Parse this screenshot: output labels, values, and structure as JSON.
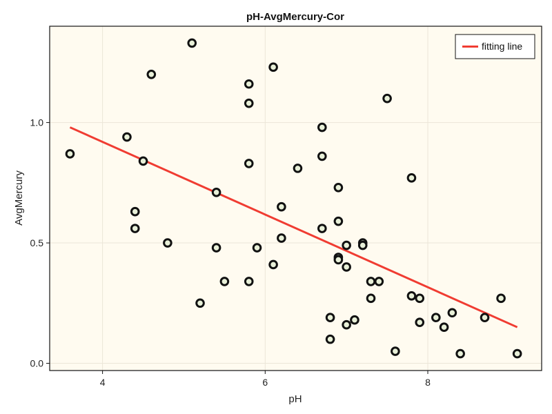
{
  "chart_data": {
    "type": "scatter",
    "title": "pH-AvgMercury-Cor",
    "xlabel": "pH",
    "ylabel": "AvgMercury",
    "xlim": [
      3.35,
      9.4
    ],
    "ylim": [
      -0.03,
      1.4
    ],
    "xticks": [
      4,
      6,
      8
    ],
    "xtick_labels": [
      "4",
      "6",
      "8"
    ],
    "yticks": [
      0.0,
      0.5,
      1.0
    ],
    "ytick_labels": [
      "0.0",
      "0.5",
      "1.0"
    ],
    "grid": true,
    "legend": {
      "placement": "top-right",
      "entries": [
        "fitting line"
      ]
    },
    "colors": {
      "background": "#fffbf0",
      "point_fill": "#e8f0d8",
      "point_edge": "#111111",
      "line": "#f03c32",
      "grid": "#ebe6d8"
    },
    "series": [
      {
        "kind": "points",
        "points": [
          [
            3.6,
            0.87
          ],
          [
            4.3,
            0.94
          ],
          [
            4.4,
            0.63
          ],
          [
            4.4,
            0.56
          ],
          [
            4.5,
            0.84
          ],
          [
            4.6,
            1.2
          ],
          [
            4.8,
            0.5
          ],
          [
            5.1,
            1.33
          ],
          [
            5.2,
            0.25
          ],
          [
            5.4,
            0.71
          ],
          [
            5.4,
            0.48
          ],
          [
            5.5,
            0.34
          ],
          [
            5.8,
            1.16
          ],
          [
            5.8,
            1.08
          ],
          [
            5.8,
            0.83
          ],
          [
            5.8,
            0.34
          ],
          [
            5.9,
            0.48
          ],
          [
            6.1,
            1.23
          ],
          [
            6.1,
            0.41
          ],
          [
            6.2,
            0.65
          ],
          [
            6.2,
            0.52
          ],
          [
            6.4,
            0.81
          ],
          [
            6.7,
            0.98
          ],
          [
            6.7,
            0.86
          ],
          [
            6.7,
            0.56
          ],
          [
            6.8,
            0.19
          ],
          [
            6.8,
            0.1
          ],
          [
            6.9,
            0.73
          ],
          [
            6.9,
            0.59
          ],
          [
            6.9,
            0.44
          ],
          [
            6.9,
            0.43
          ],
          [
            7.0,
            0.49
          ],
          [
            7.0,
            0.4
          ],
          [
            7.0,
            0.16
          ],
          [
            7.1,
            0.18
          ],
          [
            7.2,
            0.5
          ],
          [
            7.2,
            0.49
          ],
          [
            7.3,
            0.34
          ],
          [
            7.3,
            0.27
          ],
          [
            7.4,
            0.34
          ],
          [
            7.5,
            1.1
          ],
          [
            7.6,
            0.05
          ],
          [
            7.8,
            0.77
          ],
          [
            7.8,
            0.28
          ],
          [
            7.9,
            0.27
          ],
          [
            7.9,
            0.17
          ],
          [
            8.1,
            0.19
          ],
          [
            8.2,
            0.15
          ],
          [
            8.3,
            0.21
          ],
          [
            8.4,
            0.04
          ],
          [
            8.7,
            0.19
          ],
          [
            8.9,
            0.27
          ],
          [
            9.1,
            0.04
          ]
        ]
      },
      {
        "name": "fitting line",
        "kind": "line",
        "points": [
          [
            3.6,
            0.98
          ],
          [
            9.1,
            0.15
          ]
        ]
      }
    ]
  }
}
